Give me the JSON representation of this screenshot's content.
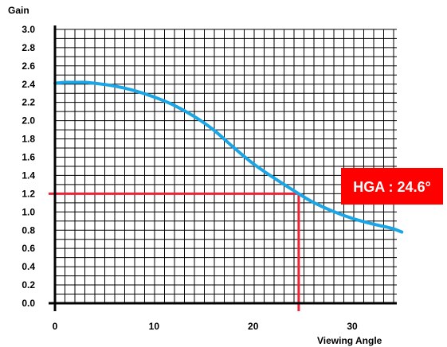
{
  "chart_data": {
    "type": "line",
    "ylabel": "Gain",
    "xlabel": "Viewing Angle",
    "xlim": [
      0,
      34.5
    ],
    "ylim": [
      0,
      3.0
    ],
    "x_ticks": [
      "0",
      "10",
      "20",
      "30"
    ],
    "x_tick_values": [
      0,
      10,
      20,
      30
    ],
    "y_ticks": [
      "0.0",
      "0.2",
      "0.4",
      "0.6",
      "0.8",
      "1.0",
      "1.2",
      "1.4",
      "1.6",
      "1.8",
      "2.0",
      "2.2",
      "2.4",
      "2.6",
      "2.8",
      "3.0"
    ],
    "y_tick_values": [
      0,
      0.2,
      0.4,
      0.6,
      0.8,
      1.0,
      1.2,
      1.4,
      1.6,
      1.8,
      2.0,
      2.2,
      2.4,
      2.6,
      2.8,
      3.0
    ],
    "grid": true,
    "series": [
      {
        "x": [
          0,
          1,
          2,
          3,
          4,
          6,
          8,
          10,
          12,
          14,
          16,
          18,
          20,
          22,
          24.6,
          26,
          28,
          30,
          32,
          34,
          35
        ],
        "y": [
          2.41,
          2.42,
          2.42,
          2.42,
          2.41,
          2.38,
          2.33,
          2.26,
          2.17,
          2.05,
          1.9,
          1.71,
          1.53,
          1.38,
          1.2,
          1.11,
          1.01,
          0.93,
          0.87,
          0.82,
          0.78
        ],
        "color": "#1aa6e6"
      }
    ],
    "hga_marker": {
      "x": 24.6,
      "y": 1.2,
      "color": "#ee2233"
    },
    "annotation": {
      "text": "HGA : 24.6°",
      "background": "#ff0000",
      "text_color": "#ffffff"
    }
  }
}
